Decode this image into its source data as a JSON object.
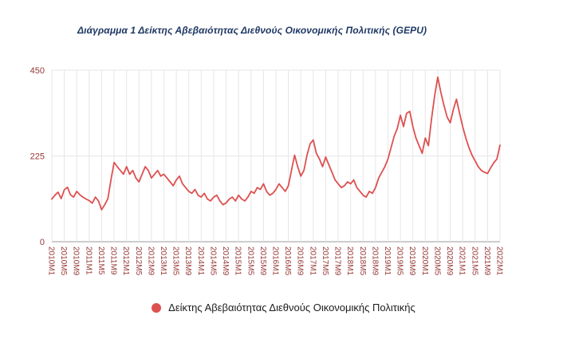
{
  "page": {
    "background": "#ffffff"
  },
  "title": {
    "text": "Διάγραμμα 1 Δείκτης Αβεβαιότητας Διεθνούς Οικονομικής Πολιτικής (GEPU)",
    "color": "#1f3864"
  },
  "legend": {
    "label": "Δείκτης Αβεβαιότητας Διεθνούς Οικονομικής Πολιτικής",
    "marker_color": "#de5050"
  },
  "chart_data": {
    "type": "line",
    "title": "Διάγραμμα 1 Δείκτης Αβεβαιότητας Διεθνούς Οικονομικής Πολιτικής (GEPU)",
    "x_start": "2010M1",
    "x_end": "2022M1",
    "x_frequency": "monthly",
    "ylim": [
      0,
      450
    ],
    "y_ticks": [
      0,
      225,
      450
    ],
    "x_tick_labels": [
      "2010M1",
      "2010M5",
      "2010M9",
      "2011M1",
      "2011M5",
      "2011M9",
      "2012M1",
      "2012M5",
      "2012M9",
      "2013M1",
      "2013M5",
      "2013M9",
      "2014M1",
      "2014M5",
      "2014M9",
      "2015M1",
      "2015M5",
      "2015M9",
      "2016M1",
      "2016M5",
      "2016M9",
      "2017M1",
      "2017M5",
      "2017M9",
      "2018M1",
      "2018M5",
      "2018M9",
      "2019M1",
      "2019M5",
      "2019M9",
      "2020M1",
      "2020M5",
      "2020M9",
      "2021M1",
      "2021M5",
      "2021M9",
      "2022M1"
    ],
    "grid": "vertical-per-tick",
    "gridline_color": "#e6e6e6",
    "axis_line_color": "#9a9a9a",
    "axis_label_color": "#953735",
    "legend_position": "bottom",
    "series": [
      {
        "name": "Δείκτης Αβεβαιότητας Διεθνούς Οικονομικής Πολιτικής",
        "color": "#de5050",
        "values": [
          112,
          122,
          130,
          113,
          136,
          143,
          123,
          117,
          132,
          123,
          117,
          112,
          108,
          101,
          117,
          107,
          84,
          97,
          113,
          163,
          208,
          197,
          187,
          177,
          197,
          177,
          187,
          167,
          157,
          177,
          197,
          187,
          167,
          177,
          187,
          172,
          177,
          167,
          157,
          147,
          162,
          172,
          152,
          142,
          132,
          127,
          137,
          122,
          117,
          127,
          112,
          107,
          117,
          122,
          107,
          97,
          102,
          112,
          117,
          107,
          122,
          112,
          107,
          117,
          132,
          127,
          142,
          137,
          152,
          132,
          122,
          127,
          137,
          152,
          142,
          132,
          147,
          187,
          227,
          197,
          172,
          187,
          227,
          257,
          267,
          232,
          217,
          197,
          222,
          202,
          182,
          162,
          152,
          142,
          147,
          157,
          152,
          162,
          142,
          132,
          122,
          117,
          132,
          127,
          142,
          167,
          182,
          197,
          217,
          247,
          277,
          297,
          332,
          302,
          337,
          342,
          302,
          272,
          252,
          232,
          272,
          252,
          322,
          382,
          432,
          392,
          357,
          327,
          312,
          347,
          374,
          337,
          302,
          272,
          247,
          227,
          212,
          197,
          187,
          182,
          179,
          194,
          207,
          217,
          253
        ]
      }
    ]
  }
}
